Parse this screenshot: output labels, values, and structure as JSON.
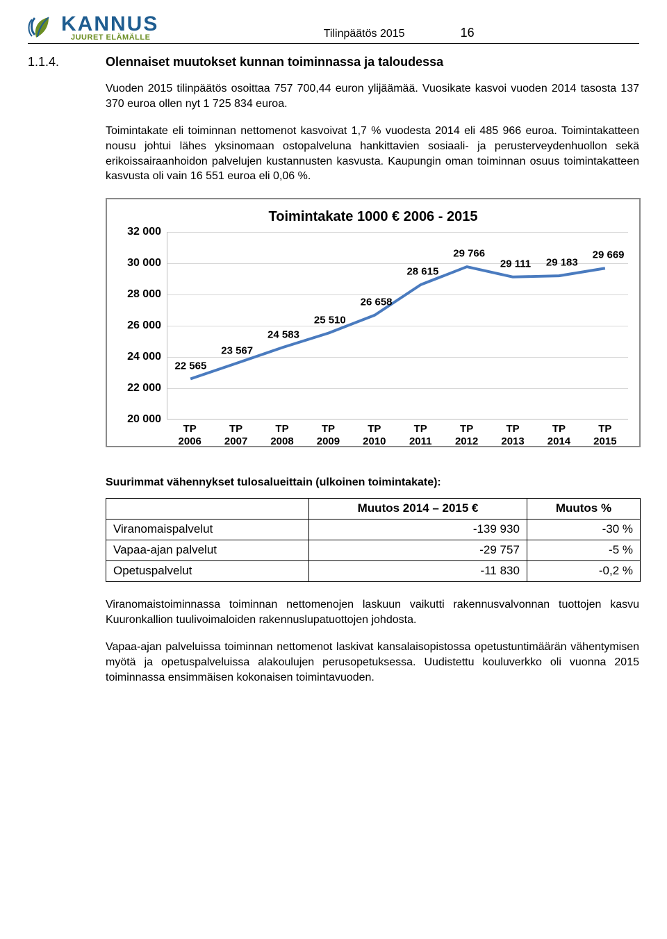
{
  "logo": {
    "main": "KANNUS",
    "sub": "JUURET ELÄMÄLLE",
    "main_color": "#1f5d90",
    "sub_color": "#6b8e23"
  },
  "header": {
    "title": "Tilinpäätös 2015",
    "page_number": "16"
  },
  "section": {
    "number": "1.1.4.",
    "title": "Olennaiset muutokset kunnan toiminnassa ja taloudessa"
  },
  "paragraphs": {
    "p1": "Vuoden 2015 tilinpäätös osoittaa 757 700,44 euron ylijäämää. Vuosikate kasvoi vuoden 2014 tasosta 137 370 euroa ollen nyt 1 725 834 euroa.",
    "p2": "Toimintakate eli toiminnan nettomenot kasvoivat 1,7 % vuodesta 2014 eli 485 966 euroa. Toimintakatteen nousu johtui lähes yksinomaan ostopalveluna hankittavien sosiaali- ja perusterveydenhuollon sekä erikoissairaanhoidon palvelujen kustannusten kasvusta. Kaupungin oman toiminnan osuus toimintakatteen kasvusta oli vain 16 551 euroa eli 0,06 %.",
    "p3": "Viranomaistoiminnassa toiminnan nettomenojen laskuun vaikutti rakennusvalvonnan tuottojen kasvu Kuuronkallion tuulivoimaloiden rakennuslupatuottojen johdosta.",
    "p4": "Vapaa-ajan palveluissa toiminnan nettomenot laskivat kansalaisopistossa opetustuntimäärän vähentymisen myötä ja opetuspalveluissa alakoulujen perusopetuksessa. Uudistettu kouluverkko oli vuonna 2015 toiminnassa ensimmäisen kokonaisen toimintavuoden."
  },
  "chart": {
    "title": "Toimintakate 1000 € 2006 - 2015",
    "type": "line",
    "line_color": "#4a7bbf",
    "line_width": 4,
    "grid_color": "#d7d7d7",
    "axis_color": "#bcbcbc",
    "background_color": "#ffffff",
    "label_fontsize": 15,
    "ylim": [
      20000,
      32000
    ],
    "ytick_step": 2000,
    "y_ticks": [
      "20 000",
      "22 000",
      "24 000",
      "26 000",
      "28 000",
      "30 000",
      "32 000"
    ],
    "x_labels": [
      "TP 2006",
      "TP 2007",
      "TP 2008",
      "TP 2009",
      "TP 2010",
      "TP 2011",
      "TP 2012",
      "TP 2013",
      "TP 2014",
      "TP 2015"
    ],
    "values": [
      22565,
      23567,
      24583,
      25510,
      26658,
      28615,
      29766,
      29111,
      29183,
      29669
    ],
    "value_labels": [
      "22 565",
      "23 567",
      "24 583",
      "25 510",
      "26 658",
      "28 615",
      "29 766",
      "29 111",
      "29 183",
      "29 669"
    ]
  },
  "table_heading": "Suurimmat vähennykset tulosalueittain (ulkoinen toimintakate):",
  "table": {
    "columns": [
      "",
      "Muutos 2014 – 2015 €",
      "Muutos %"
    ],
    "rows": [
      [
        "Viranomaispalvelut",
        "-139 930",
        "-30 %"
      ],
      [
        "Vapaa-ajan palvelut",
        "-29 757",
        "-5 %"
      ],
      [
        "Opetuspalvelut",
        "-11 830",
        "-0,2 %"
      ]
    ]
  }
}
